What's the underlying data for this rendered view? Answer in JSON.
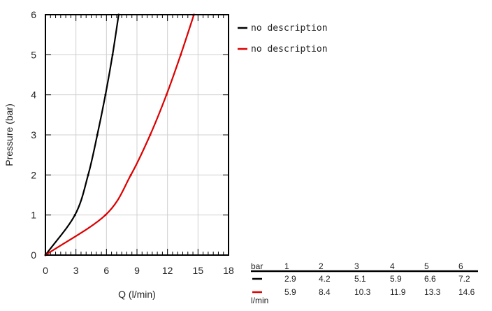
{
  "chart_data": {
    "type": "line",
    "title": "",
    "xlabel": "Q (l/min)",
    "ylabel": "Pressure (bar)",
    "xlim": [
      0,
      18
    ],
    "ylim": [
      0,
      6
    ],
    "x_ticks": [
      0,
      3,
      6,
      9,
      12,
      15,
      18
    ],
    "y_ticks": [
      0,
      1,
      2,
      3,
      4,
      5,
      6
    ],
    "grid": true,
    "legend_position": "right",
    "series": [
      {
        "name": "no description",
        "color": "#000000",
        "x": [
          0,
          2.9,
          4.2,
          5.1,
          5.9,
          6.6,
          7.2
        ],
        "y": [
          0,
          1,
          2,
          3,
          4,
          5,
          6
        ]
      },
      {
        "name": "no description",
        "color": "#dd0000",
        "x": [
          0,
          5.9,
          8.4,
          10.3,
          11.9,
          13.3,
          14.6
        ],
        "y": [
          0,
          1,
          2,
          3,
          4,
          5,
          6
        ]
      }
    ]
  },
  "table": {
    "header_label": "bar",
    "unit_label": "l/min",
    "columns": [
      "1",
      "2",
      "3",
      "4",
      "5",
      "6"
    ],
    "rows": [
      {
        "color": "#000000",
        "values": [
          "2.9",
          "4.2",
          "5.1",
          "5.9",
          "6.6",
          "7.2"
        ]
      },
      {
        "color": "#dd0000",
        "values": [
          "5.9",
          "8.4",
          "10.3",
          "11.9",
          "13.3",
          "14.6"
        ]
      }
    ]
  }
}
